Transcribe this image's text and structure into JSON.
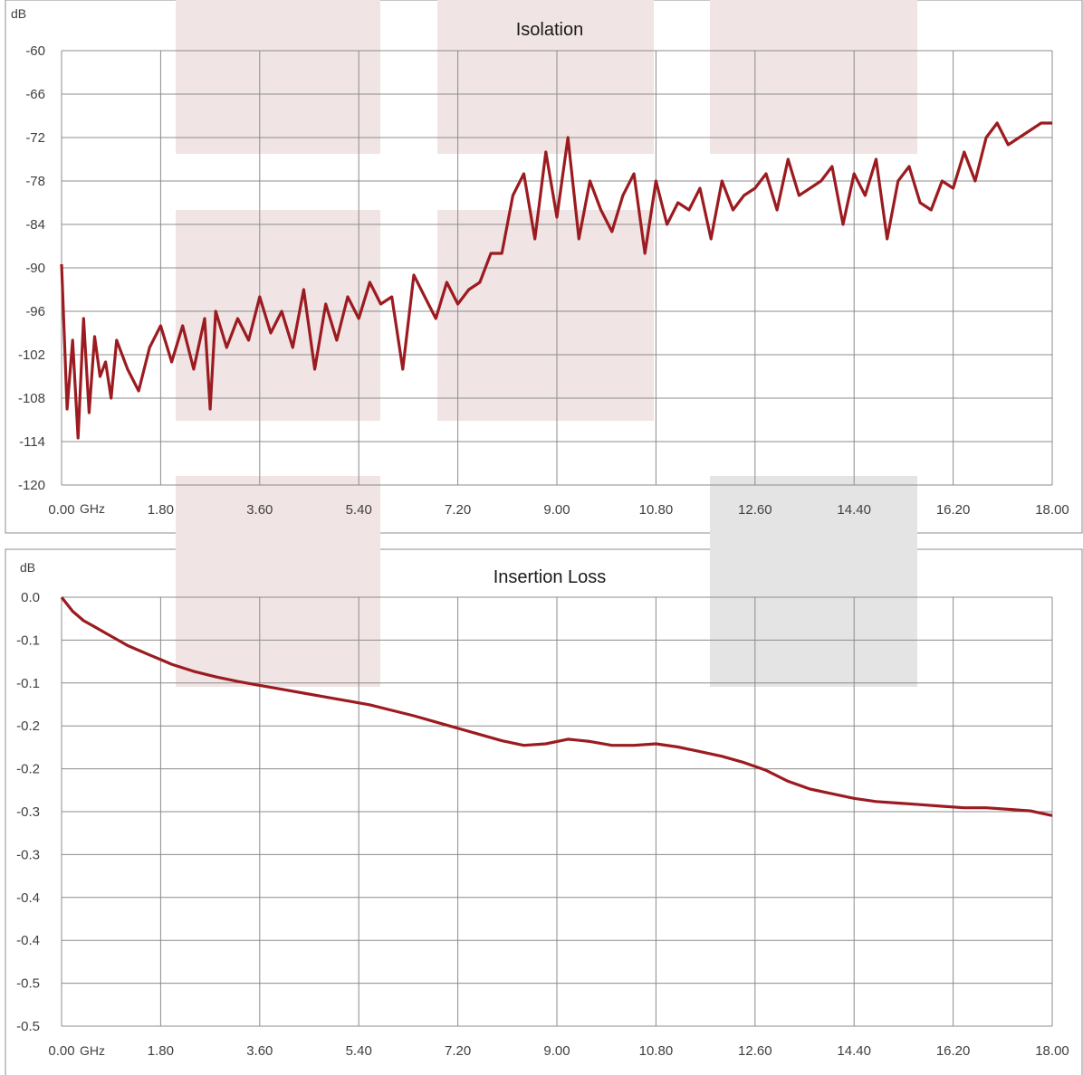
{
  "chart_data": [
    {
      "type": "line",
      "title": "Isolation",
      "ylabel": "dB",
      "xlabel": "GHz",
      "ylim": [
        -120,
        -60
      ],
      "xlim": [
        0,
        18
      ],
      "grid": true,
      "y_ticks": [
        "-60",
        "-66",
        "-72",
        "-78",
        "-84",
        "-90",
        "-96",
        "-102",
        "-108",
        "-114",
        "-120"
      ],
      "x_ticks": [
        "0.00",
        "1.80",
        "3.60",
        "5.40",
        "7.20",
        "9.00",
        "10.80",
        "12.60",
        "14.40",
        "16.20",
        "18.00"
      ],
      "line_color": "#9b1b20",
      "series": [
        {
          "x": [
            0.0,
            0.1,
            0.2,
            0.3,
            0.4,
            0.5,
            0.6,
            0.7,
            0.8,
            0.9,
            1.0,
            1.2,
            1.4,
            1.6,
            1.8,
            2.0,
            2.2,
            2.4,
            2.6,
            2.7,
            2.8,
            3.0,
            3.2,
            3.4,
            3.6,
            3.8,
            4.0,
            4.2,
            4.4,
            4.6,
            4.8,
            5.0,
            5.2,
            5.4,
            5.6,
            5.8,
            6.0,
            6.2,
            6.4,
            6.6,
            6.8,
            7.0,
            7.2,
            7.4,
            7.6,
            7.8,
            8.0,
            8.2,
            8.4,
            8.6,
            8.8,
            9.0,
            9.2,
            9.4,
            9.6,
            9.8,
            10.0,
            10.2,
            10.4,
            10.6,
            10.8,
            11.0,
            11.2,
            11.4,
            11.6,
            11.8,
            12.0,
            12.2,
            12.4,
            12.6,
            12.8,
            13.0,
            13.2,
            13.4,
            13.6,
            13.8,
            14.0,
            14.2,
            14.4,
            14.6,
            14.8,
            15.0,
            15.2,
            15.4,
            15.6,
            15.8,
            16.0,
            16.2,
            16.4,
            16.6,
            16.8,
            17.0,
            17.2,
            17.4,
            17.6,
            17.8,
            18.0
          ],
          "y": [
            -89.5,
            -109.5,
            -100,
            -113.5,
            -97,
            -110,
            -99.5,
            -105,
            -103,
            -108,
            -100,
            -104,
            -107,
            -101,
            -98,
            -103,
            -98,
            -104,
            -97,
            -109.5,
            -96,
            -101,
            -97,
            -100,
            -94,
            -99,
            -96,
            -101,
            -93,
            -104,
            -95,
            -100,
            -94,
            -97,
            -92,
            -95,
            -94,
            -104,
            -91,
            -94,
            -97,
            -92,
            -95,
            -93,
            -92,
            -88,
            -88,
            -80,
            -77,
            -86,
            -74,
            -83,
            -72,
            -86,
            -78,
            -82,
            -85,
            -80,
            -77,
            -88,
            -78,
            -84,
            -81,
            -82,
            -79,
            -86,
            -78,
            -82,
            -80,
            -79,
            -77,
            -82,
            -75,
            -80,
            -79,
            -78,
            -76,
            -84,
            -77,
            -80,
            -75,
            -86,
            -78,
            -76,
            -81,
            -82,
            -78,
            -79,
            -74,
            -78,
            -72,
            -70,
            -73,
            -72,
            -71,
            -70,
            -70
          ]
        }
      ]
    },
    {
      "type": "line",
      "title": "Insertion Loss",
      "ylabel": "dB",
      "xlabel": "GHz",
      "ylim": [
        -0.55,
        0.0
      ],
      "xlim": [
        0,
        18
      ],
      "grid": true,
      "y_ticks": [
        "0.0",
        "-0.1",
        "-0.1",
        "-0.2",
        "-0.2",
        "-0.3",
        "-0.3",
        "-0.4",
        "-0.4",
        "-0.5",
        "-0.5"
      ],
      "x_ticks": [
        "0.00",
        "1.80",
        "3.60",
        "5.40",
        "7.20",
        "9.00",
        "10.80",
        "12.60",
        "14.40",
        "16.20",
        "18.00"
      ],
      "line_color": "#9b1b20",
      "series": [
        {
          "x": [
            0.0,
            0.2,
            0.4,
            0.6,
            0.8,
            1.0,
            1.2,
            1.4,
            1.6,
            1.8,
            2.0,
            2.4,
            2.8,
            3.2,
            3.6,
            4.0,
            4.4,
            4.8,
            5.2,
            5.6,
            6.0,
            6.4,
            6.8,
            7.2,
            7.6,
            8.0,
            8.4,
            8.8,
            9.2,
            9.6,
            10.0,
            10.4,
            10.8,
            11.2,
            11.6,
            12.0,
            12.4,
            12.8,
            13.2,
            13.6,
            14.0,
            14.4,
            14.8,
            15.2,
            15.6,
            16.0,
            16.4,
            16.8,
            17.2,
            17.6,
            18.0
          ],
          "y": [
            0.0,
            -0.018,
            -0.03,
            -0.038,
            -0.046,
            -0.054,
            -0.062,
            -0.068,
            -0.074,
            -0.08,
            -0.086,
            -0.095,
            -0.102,
            -0.108,
            -0.113,
            -0.118,
            -0.123,
            -0.128,
            -0.133,
            -0.138,
            -0.145,
            -0.152,
            -0.16,
            -0.168,
            -0.176,
            -0.184,
            -0.19,
            -0.188,
            -0.182,
            -0.185,
            -0.19,
            -0.19,
            -0.188,
            -0.192,
            -0.198,
            -0.204,
            -0.212,
            -0.222,
            -0.236,
            -0.246,
            -0.252,
            -0.258,
            -0.262,
            -0.264,
            -0.266,
            -0.268,
            -0.27,
            -0.27,
            -0.272,
            -0.274,
            -0.28
          ]
        }
      ]
    }
  ]
}
